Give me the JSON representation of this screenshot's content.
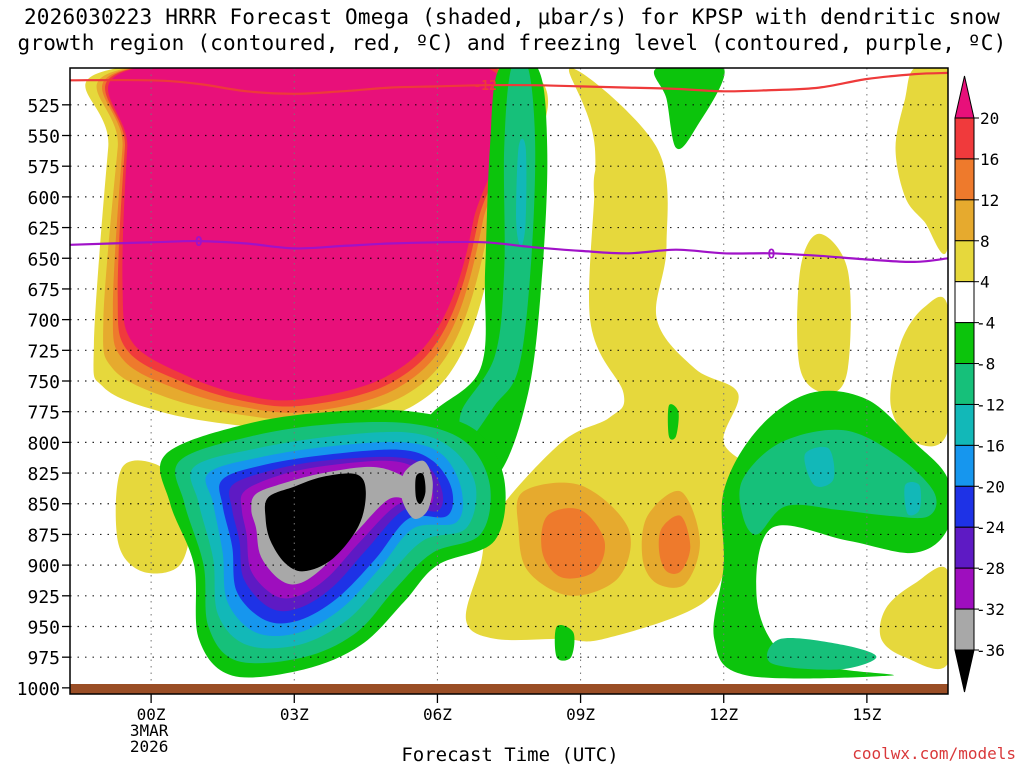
{
  "title": {
    "line1": "2026030223 HRRR Forecast Omega (shaded, μbar/s) for KPSP with dendritic snow",
    "line2": "growth region (contoured, red, ºC) and freezing level (contoured, purple, ºC)"
  },
  "credit": "coolwx.com/models",
  "chart_data": {
    "type": "heatmap",
    "title": "2026030223 HRRR Forecast Omega (shaded, μbar/s) for KPSP with dendritic snow growth region (contoured, red, ºC) and freezing level (contoured, purple, ºC)",
    "xlabel": "Forecast Time (UTC)",
    "ylabel": "",
    "x_range_hours": [
      -1.7,
      16.7
    ],
    "y_range_hPa": [
      1005,
      495
    ],
    "y_ticks": [
      525,
      550,
      575,
      600,
      625,
      650,
      675,
      700,
      725,
      750,
      775,
      800,
      825,
      850,
      875,
      900,
      925,
      950,
      975,
      1000
    ],
    "x_ticks": [
      {
        "hour": 0,
        "label": "00Z",
        "sub1": "3MAR",
        "sub2": "2026"
      },
      {
        "hour": 3,
        "label": "03Z"
      },
      {
        "hour": 6,
        "label": "06Z"
      },
      {
        "hour": 9,
        "label": "09Z"
      },
      {
        "hour": 12,
        "label": "12Z"
      },
      {
        "hour": 15,
        "label": "15Z"
      }
    ],
    "grid": true,
    "colorbar": {
      "position": "right",
      "labels": [
        "20",
        "16",
        "12",
        "8",
        "4",
        "-4",
        "-8",
        "-12",
        "-16",
        "-20",
        "-24",
        "-28",
        "-32",
        "-36"
      ],
      "levels": [
        {
          "range": ">20",
          "color": "#e8107a"
        },
        {
          "range": "16 to 20",
          "color": "#f03a3c"
        },
        {
          "range": "12 to 16",
          "color": "#ee7a2c"
        },
        {
          "range": "8 to 12",
          "color": "#e6aa2e"
        },
        {
          "range": "4 to 8",
          "color": "#e6d83c"
        },
        {
          "range": "-4 to 4",
          "color": "#ffffff"
        },
        {
          "range": "-8 to -4",
          "color": "#0cc40c"
        },
        {
          "range": "-12 to -8",
          "color": "#16c07a"
        },
        {
          "range": "-16 to -12",
          "color": "#12b8b8"
        },
        {
          "range": "-20 to -16",
          "color": "#1696ee"
        },
        {
          "range": "-24 to -20",
          "color": "#1e32e6"
        },
        {
          "range": "-28 to -24",
          "color": "#5e1ac4"
        },
        {
          "range": "-32 to -28",
          "color": "#9e0ebe"
        },
        {
          "range": "-36 to -32",
          "color": "#a8a8a8"
        },
        {
          "range": "<-36",
          "color": "#000000"
        }
      ]
    },
    "series": [
      {
        "name": "dendritic snow growth region",
        "color": "#ee3a3a",
        "contour_label": "-12",
        "label_hour": 7.0,
        "x": [
          -1.7,
          0,
          1,
          2,
          3,
          4,
          5,
          6,
          7,
          8,
          9,
          10,
          11,
          12,
          13,
          14,
          15,
          16,
          16.7
        ],
        "y": [
          505,
          505,
          508,
          514,
          516,
          514,
          511,
          510,
          509,
          509,
          510,
          511,
          512,
          514,
          513,
          511,
          504,
          500,
          499
        ]
      },
      {
        "name": "freezing level",
        "color": "#a012c8",
        "contour_label": "0",
        "label_hour": 13.0,
        "x": [
          -1.7,
          0,
          1,
          2,
          3,
          4,
          5,
          6,
          7,
          8,
          9,
          10,
          11,
          12,
          13,
          14,
          15,
          16,
          16.7
        ],
        "y": [
          639,
          637,
          636,
          638,
          642,
          640,
          638,
          637,
          637,
          641,
          644,
          646,
          643,
          646,
          646,
          648,
          651,
          653,
          650
        ]
      }
    ]
  }
}
